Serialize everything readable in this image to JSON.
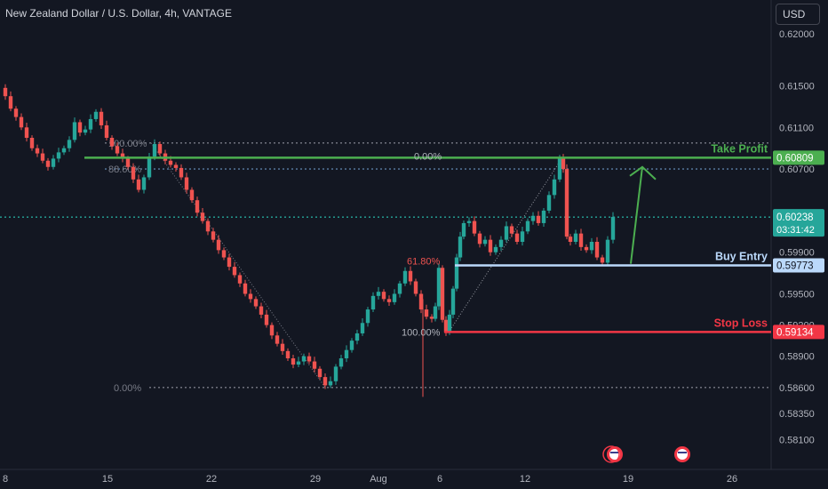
{
  "header": {
    "symbol_title": "New Zealand Dollar / U.S. Dollar, 4h, VANTAGE",
    "currency_label": "USD"
  },
  "colors": {
    "background": "#131722",
    "bull": "#26a69a",
    "bear": "#ef5350",
    "take_profit": "#4caf50",
    "buy_entry": "#bbd9fb",
    "stop_loss": "#f23645",
    "current_price": "#26a69a",
    "axis_text": "#b2b5be",
    "fib_text": "#787b86"
  },
  "chart_data": {
    "type": "candlestick",
    "title": "New Zealand Dollar / U.S. Dollar, 4h, VANTAGE",
    "price_axis": {
      "ticks": [
        "0.62000",
        "0.61500",
        "0.61100",
        "0.60700",
        "0.60230",
        "0.59900",
        "0.59500",
        "0.59200",
        "0.58900",
        "0.58600",
        "0.58350",
        "0.58100"
      ],
      "ylim": [
        0.5795,
        0.6212
      ]
    },
    "time_axis": {
      "ticks": [
        "8",
        "15",
        "22",
        "29",
        "Aug",
        "6",
        "12",
        "19",
        "26"
      ]
    },
    "price_path": [
      [
        0,
        0.6148
      ],
      [
        6,
        0.614
      ],
      [
        12,
        0.6128
      ],
      [
        18,
        0.612
      ],
      [
        24,
        0.611
      ],
      [
        30,
        0.61
      ],
      [
        36,
        0.609
      ],
      [
        42,
        0.6085
      ],
      [
        48,
        0.6078
      ],
      [
        54,
        0.6072
      ],
      [
        60,
        0.608
      ],
      [
        66,
        0.6086
      ],
      [
        72,
        0.609
      ],
      [
        78,
        0.6098
      ],
      [
        84,
        0.6115
      ],
      [
        90,
        0.6105
      ],
      [
        96,
        0.6108
      ],
      [
        102,
        0.6118
      ],
      [
        108,
        0.6125
      ],
      [
        114,
        0.6112
      ],
      [
        120,
        0.61
      ],
      [
        126,
        0.6092
      ],
      [
        132,
        0.6085
      ],
      [
        138,
        0.608
      ],
      [
        144,
        0.6072
      ],
      [
        150,
        0.606
      ],
      [
        156,
        0.605
      ],
      [
        162,
        0.6062
      ],
      [
        168,
        0.6082
      ],
      [
        174,
        0.6094
      ],
      [
        180,
        0.6085
      ],
      [
        186,
        0.6078
      ],
      [
        192,
        0.6074
      ],
      [
        198,
        0.6071
      ],
      [
        204,
        0.6062
      ],
      [
        210,
        0.605
      ],
      [
        216,
        0.604
      ],
      [
        222,
        0.6028
      ],
      [
        228,
        0.602
      ],
      [
        234,
        0.601
      ],
      [
        240,
        0.6002
      ],
      [
        246,
        0.5992
      ],
      [
        252,
        0.5985
      ],
      [
        258,
        0.5976
      ],
      [
        264,
        0.5968
      ],
      [
        270,
        0.596
      ],
      [
        276,
        0.595
      ],
      [
        282,
        0.5945
      ],
      [
        288,
        0.5938
      ],
      [
        294,
        0.593
      ],
      [
        300,
        0.592
      ],
      [
        306,
        0.591
      ],
      [
        312,
        0.5902
      ],
      [
        318,
        0.5895
      ],
      [
        324,
        0.5888
      ],
      [
        330,
        0.5882
      ],
      [
        336,
        0.5885
      ],
      [
        342,
        0.589
      ],
      [
        348,
        0.5885
      ],
      [
        354,
        0.5878
      ],
      [
        360,
        0.587
      ],
      [
        366,
        0.5862
      ],
      [
        372,
        0.5866
      ],
      [
        378,
        0.588
      ],
      [
        384,
        0.5888
      ],
      [
        390,
        0.5896
      ],
      [
        396,
        0.5905
      ],
      [
        402,
        0.5912
      ],
      [
        408,
        0.5922
      ],
      [
        414,
        0.5935
      ],
      [
        420,
        0.5948
      ],
      [
        426,
        0.5952
      ],
      [
        432,
        0.5945
      ],
      [
        438,
        0.5942
      ],
      [
        444,
        0.595
      ],
      [
        450,
        0.596
      ],
      [
        456,
        0.5972
      ],
      [
        462,
        0.5962
      ],
      [
        468,
        0.595
      ],
      [
        474,
        0.5935
      ],
      [
        480,
        0.5928
      ],
      [
        486,
        0.5926
      ],
      [
        490,
        0.5938
      ],
      [
        494,
        0.5975
      ],
      [
        498,
        0.5925
      ],
      [
        502,
        0.5913
      ],
      [
        506,
        0.593
      ],
      [
        510,
        0.5955
      ],
      [
        514,
        0.5985
      ],
      [
        518,
        0.6005
      ],
      [
        522,
        0.6018
      ],
      [
        528,
        0.602
      ],
      [
        534,
        0.6008
      ],
      [
        540,
        0.5998
      ],
      [
        546,
        0.6002
      ],
      [
        552,
        0.599
      ],
      [
        558,
        0.5995
      ],
      [
        564,
        0.6002
      ],
      [
        570,
        0.6015
      ],
      [
        576,
        0.6008
      ],
      [
        582,
        0.6
      ],
      [
        588,
        0.601
      ],
      [
        594,
        0.602
      ],
      [
        600,
        0.6025
      ],
      [
        606,
        0.6018
      ],
      [
        612,
        0.603
      ],
      [
        618,
        0.6045
      ],
      [
        624,
        0.606
      ],
      [
        630,
        0.6081
      ],
      [
        634,
        0.607
      ],
      [
        638,
        0.6005
      ],
      [
        642,
        0.6
      ],
      [
        648,
        0.6008
      ],
      [
        654,
        0.5995
      ],
      [
        660,
        0.5992
      ],
      [
        666,
        0.6
      ],
      [
        672,
        0.5985
      ],
      [
        678,
        0.598
      ],
      [
        684,
        0.6002
      ],
      [
        690,
        0.6024
      ]
    ],
    "fib_left": {
      "levels": [
        {
          "label": "100.00%",
          "price": 0.6095
        },
        {
          "label": "88.60%",
          "price": 0.607
        },
        {
          "label": "0.00%",
          "price": 0.586
        }
      ]
    },
    "fib_right": {
      "levels": [
        {
          "label": "0.00%",
          "price": 0.60809
        },
        {
          "label": "61.80%",
          "price": 0.59773
        },
        {
          "label": "100.00%",
          "price": 0.59134
        }
      ]
    },
    "horizontal_lines": [
      {
        "name": "Take Profit",
        "price": 0.60809,
        "label_text": "Take Profit",
        "tag": "0.60809"
      },
      {
        "name": "Buy Entry",
        "price": 0.59773,
        "label_text": "Buy Entry",
        "tag": "0.59773"
      },
      {
        "name": "Stop Loss",
        "price": 0.59134,
        "label_text": "Stop Loss",
        "tag": "0.59134"
      }
    ],
    "current_price": {
      "price": "0.60238",
      "countdown": "03:31:42"
    },
    "dotted_levels": [
      0.6095,
      0.607,
      0.586,
      0.60238
    ],
    "projection_arrow": {
      "from_price": 0.59773,
      "to_price": 0.607
    }
  }
}
